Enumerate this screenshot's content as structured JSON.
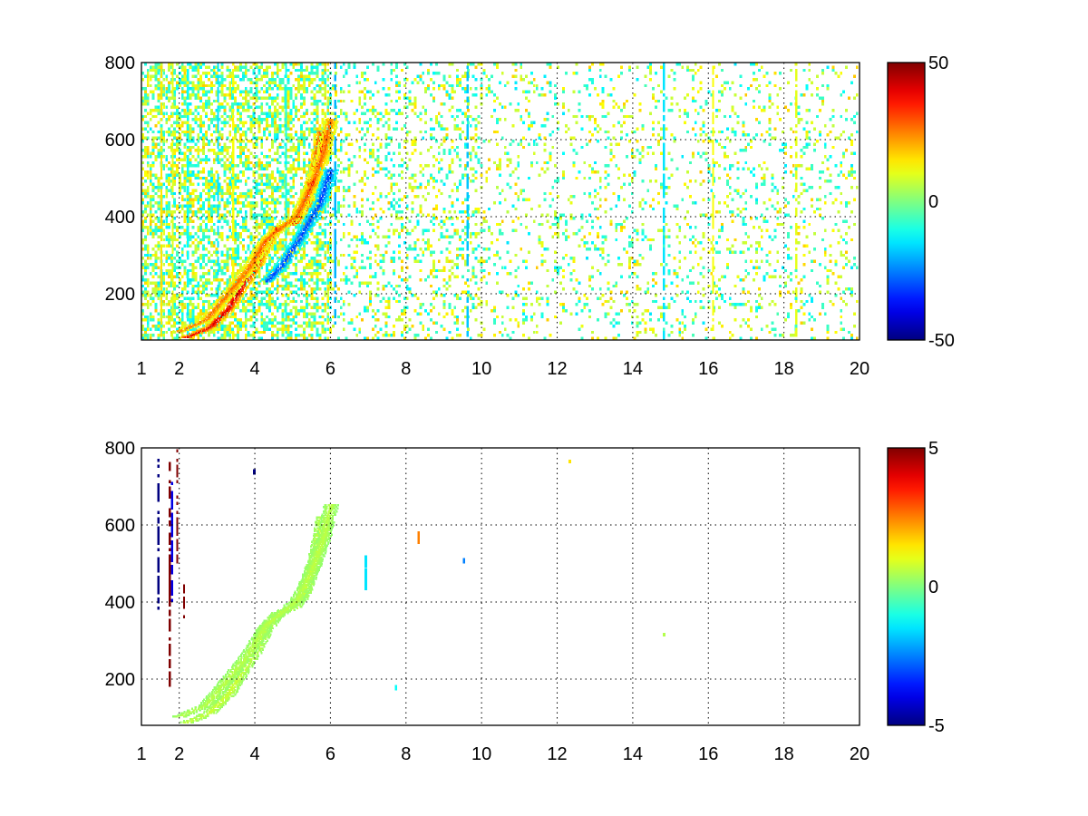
{
  "chart_data": [
    {
      "type": "heatmap",
      "title": "",
      "xlabel": "",
      "ylabel": "",
      "xlim": [
        1,
        20
      ],
      "ylim": [
        80,
        800
      ],
      "xticks": [
        "1",
        "2",
        "4",
        "6",
        "8",
        "10",
        "12",
        "14",
        "16",
        "18",
        "20"
      ],
      "yticks": [
        "200",
        "400",
        "600",
        "800"
      ],
      "grid": true,
      "colormap": "jet",
      "clim": [
        -50,
        50
      ],
      "colorbar_ticks": [
        "-50",
        "0",
        "50"
      ],
      "structures": [
        {
          "kind": "ridge",
          "value": 42,
          "points": [
            [
              2.2,
              85
            ],
            [
              2.8,
              110
            ],
            [
              3.3,
              160
            ],
            [
              3.6,
              210
            ],
            [
              4.0,
              270
            ],
            [
              4.3,
              330
            ],
            [
              4.6,
              370
            ],
            [
              5.0,
              380
            ],
            [
              5.3,
              420
            ],
            [
              5.6,
              520
            ],
            [
              5.8,
              620
            ]
          ]
        },
        {
          "kind": "ridge",
          "value": 28,
          "points": [
            [
              2.0,
              100
            ],
            [
              2.7,
              130
            ],
            [
              3.3,
              200
            ],
            [
              3.8,
              260
            ],
            [
              4.3,
              340
            ],
            [
              4.7,
              370
            ],
            [
              5.1,
              400
            ],
            [
              5.5,
              480
            ],
            [
              5.8,
              560
            ],
            [
              6.0,
              650
            ]
          ]
        },
        {
          "kind": "ridge",
          "value": -32,
          "points": [
            [
              4.3,
              230
            ],
            [
              4.7,
              270
            ],
            [
              5.1,
              330
            ],
            [
              5.4,
              380
            ],
            [
              5.7,
              430
            ],
            [
              6.0,
              520
            ]
          ]
        }
      ],
      "vertical_stripes": [
        {
          "x": 1.5,
          "value": 15
        },
        {
          "x": 1.8,
          "value": 10
        },
        {
          "x": 2.2,
          "value": -12
        },
        {
          "x": 3.0,
          "value": -15
        },
        {
          "x": 3.4,
          "value": 12
        },
        {
          "x": 4.8,
          "value": -10
        },
        {
          "x": 6.1,
          "value": -20
        },
        {
          "x": 9.6,
          "value": -18
        },
        {
          "x": 14.8,
          "value": -15
        },
        {
          "x": 16.1,
          "value": 12
        },
        {
          "x": 18.3,
          "value": 10
        }
      ],
      "background_noise_range": [
        -15,
        18
      ]
    },
    {
      "type": "heatmap",
      "title": "",
      "xlabel": "",
      "ylabel": "",
      "xlim": [
        1,
        20
      ],
      "ylim": [
        80,
        800
      ],
      "xticks": [
        "1",
        "2",
        "4",
        "6",
        "8",
        "10",
        "12",
        "14",
        "16",
        "18",
        "20"
      ],
      "yticks": [
        "200",
        "400",
        "600",
        "800"
      ],
      "grid": true,
      "colormap": "jet",
      "clim": [
        -5,
        5
      ],
      "colorbar_ticks": [
        "-5",
        "0",
        "5"
      ],
      "structures": [
        {
          "kind": "ridge",
          "value": 0.8,
          "points": [
            [
              2.2,
              85
            ],
            [
              2.8,
              110
            ],
            [
              3.3,
              160
            ],
            [
              3.6,
              210
            ],
            [
              4.0,
              270
            ],
            [
              4.3,
              330
            ],
            [
              4.6,
              370
            ],
            [
              5.0,
              380
            ],
            [
              5.3,
              420
            ],
            [
              5.6,
              520
            ],
            [
              5.8,
              620
            ]
          ]
        },
        {
          "kind": "ridge",
          "value": 0.6,
          "points": [
            [
              2.0,
              100
            ],
            [
              2.7,
              130
            ],
            [
              3.3,
              200
            ],
            [
              3.8,
              260
            ],
            [
              4.3,
              340
            ],
            [
              4.7,
              370
            ],
            [
              5.1,
              400
            ],
            [
              5.5,
              480
            ],
            [
              5.8,
              560
            ],
            [
              6.0,
              650
            ]
          ]
        }
      ],
      "vertical_stripes": [
        {
          "x": 1.42,
          "value": -5,
          "y": [
            380,
            780
          ]
        },
        {
          "x": 1.72,
          "value": 5,
          "y": [
            180,
            760
          ]
        },
        {
          "x": 1.78,
          "value": -4,
          "y": [
            400,
            720
          ]
        },
        {
          "x": 1.92,
          "value": 5,
          "y": [
            500,
            800
          ]
        },
        {
          "x": 2.1,
          "value": 5,
          "y": [
            350,
            440
          ]
        }
      ],
      "isolated_points": [
        {
          "x": 6.9,
          "value": -1.5,
          "y": [
            430,
            520
          ]
        },
        {
          "x": 8.3,
          "value": 2.5,
          "y": [
            550,
            580
          ]
        },
        {
          "x": 9.5,
          "value": -2.5,
          "y": [
            500,
            510
          ]
        },
        {
          "x": 3.95,
          "value": -5,
          "y": [
            730,
            740
          ]
        },
        {
          "x": 7.7,
          "value": -1.2,
          "y": [
            170,
            180
          ]
        },
        {
          "x": 14.8,
          "value": 0.5,
          "y": [
            310,
            315
          ]
        },
        {
          "x": 12.3,
          "value": 1.5,
          "y": [
            760,
            765
          ]
        }
      ]
    }
  ]
}
